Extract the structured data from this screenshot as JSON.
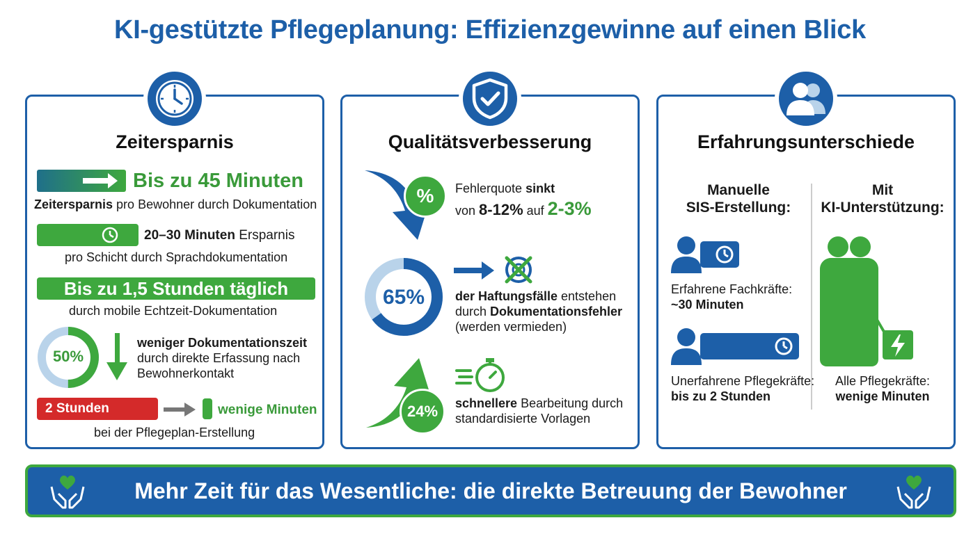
{
  "title": "KI-gestützte Pflegeplanung: Effizienzgewinne auf einen Blick",
  "panel1": {
    "icon": "clock-icon",
    "heading": "Zeitersparnis",
    "item1": {
      "value": "Bis zu 45 Minuten",
      "strong": "Zeitersparnis",
      "rest": " pro Bewohner durch Dokumentation"
    },
    "item2": {
      "strong": "20–30 Minuten",
      "rest": " Ersparnis",
      "line2": "pro Schicht durch Sprachdokumentation"
    },
    "item3": {
      "value": "Bis zu 1,5 Stunden täglich",
      "line2": "durch mobile Echtzeit-Dokumentation"
    },
    "item4": {
      "percent": "50%",
      "percent_value": 50,
      "strong": "weniger Dokumentationszeit",
      "line2": "durch direkte Erfassung nach",
      "line3": "Bewohnerkontakt"
    },
    "item5": {
      "before": "2 Stunden",
      "after": "wenige Minuten",
      "line2": "bei der Pflegeplan-Erstellung"
    }
  },
  "panel2": {
    "icon": "shield-check-icon",
    "heading": "Qualitätsverbesserung",
    "item1": {
      "badge": "%",
      "text1": "Fehlerquote ",
      "strong1": "sinkt",
      "text2": "von ",
      "strong2": "8-12%",
      "text3": " auf ",
      "value": "2-3%"
    },
    "item2": {
      "percent": "65%",
      "percent_value": 65,
      "strong1": "der Haftungsfälle",
      "text1": " entstehen",
      "text2": "durch ",
      "strong2": "Dokumentationsfehler",
      "line3": "(werden vermieden)"
    },
    "item3": {
      "percent": "24%",
      "strong": "schnellere",
      "text1": " Bearbeitung durch",
      "line2": "standardisierte Vorlagen"
    }
  },
  "panel3": {
    "icon": "users-icon",
    "heading": "Erfahrungsunterschiede",
    "left_heading1": "Manuelle",
    "left_heading2": "SIS-Erstellung:",
    "right_heading1": "Mit",
    "right_heading2": "KI-Unterstützung:",
    "exp_label": "Erfahrene Fachkräfte:",
    "exp_value": "~30 Minuten",
    "inexp_label": "Unerfahrene Pflegekräfte:",
    "inexp_value": "bis zu 2 Stunden",
    "all_label": "Alle Pflegekräfte:",
    "all_value": "wenige Minuten"
  },
  "footer": {
    "text": "Mehr Zeit für das Wesentliche: die direkte Betreuung der Bewohner"
  },
  "colors": {
    "blue": "#1d5fa8",
    "green": "#3ea83e",
    "red": "#d42a2a",
    "light_blue": "#b9d3ea"
  }
}
